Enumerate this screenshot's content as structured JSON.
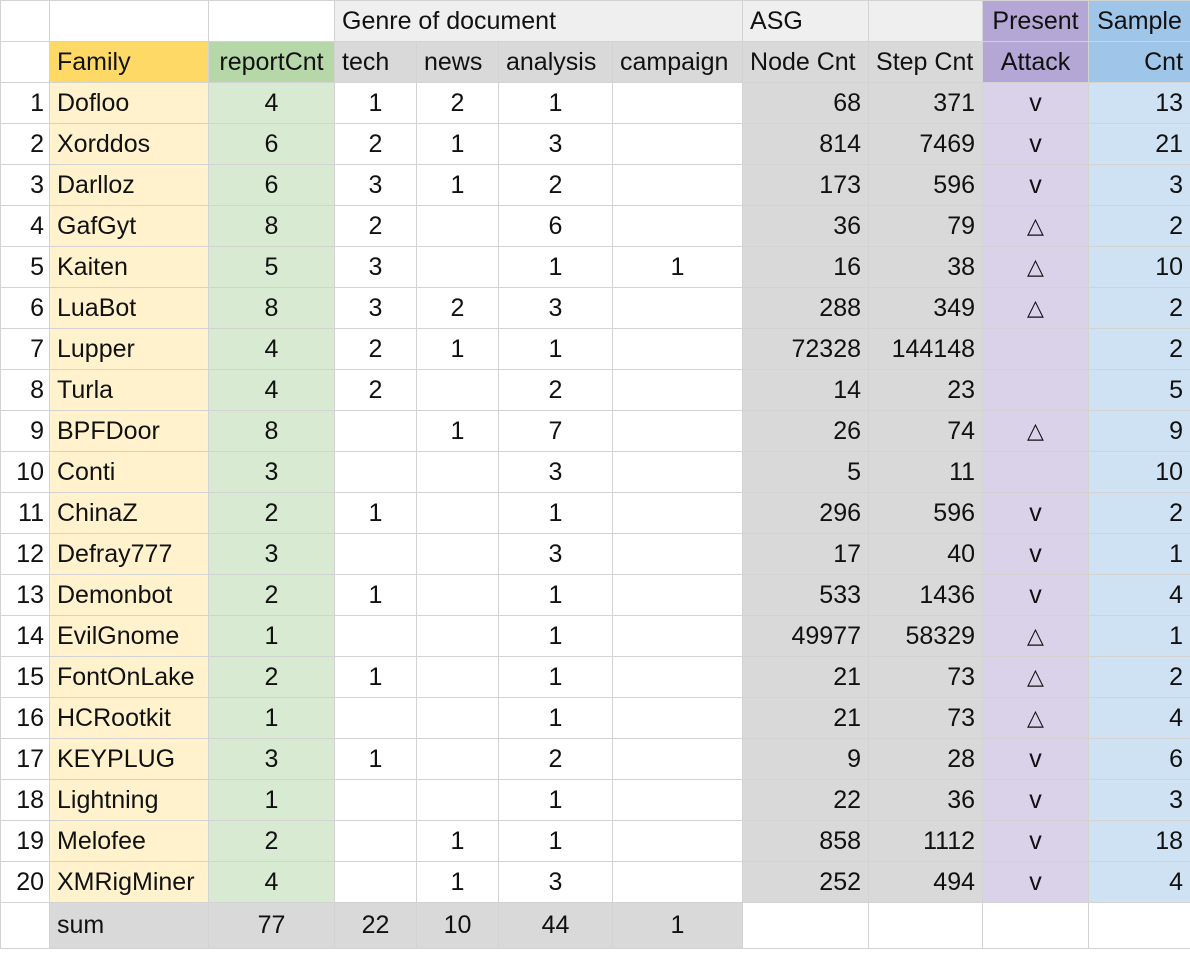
{
  "header_top": {
    "genre": "Genre of document",
    "asg": "ASG",
    "present": "Present",
    "sample": "Sample"
  },
  "header_cols": {
    "family": "Family",
    "reportCnt": "reportCnt",
    "tech": "tech",
    "news": "news",
    "analysis": "analysis",
    "campaign": "campaign",
    "node_cnt": "Node Cnt",
    "step_cnt": "Step Cnt",
    "attack": "Attack",
    "cnt": "Cnt"
  },
  "rows": [
    {
      "n": "1",
      "family": "Dofloo",
      "report": "4",
      "tech": "1",
      "news": "2",
      "analysis": "1",
      "campaign": "",
      "node": "68",
      "step": "371",
      "attack": "v",
      "sample": "13"
    },
    {
      "n": "2",
      "family": "Xorddos",
      "report": "6",
      "tech": "2",
      "news": "1",
      "analysis": "3",
      "campaign": "",
      "node": "814",
      "step": "7469",
      "attack": "v",
      "sample": "21"
    },
    {
      "n": "3",
      "family": "Darlloz",
      "report": "6",
      "tech": "3",
      "news": "1",
      "analysis": "2",
      "campaign": "",
      "node": "173",
      "step": "596",
      "attack": "v",
      "sample": "3"
    },
    {
      "n": "4",
      "family": "GafGyt",
      "report": "8",
      "tech": "2",
      "news": "",
      "analysis": "6",
      "campaign": "",
      "node": "36",
      "step": "79",
      "attack": "△",
      "sample": "2"
    },
    {
      "n": "5",
      "family": "Kaiten",
      "report": "5",
      "tech": "3",
      "news": "",
      "analysis": "1",
      "campaign": "1",
      "node": "16",
      "step": "38",
      "attack": "△",
      "sample": "10"
    },
    {
      "n": "6",
      "family": "LuaBot",
      "report": "8",
      "tech": "3",
      "news": "2",
      "analysis": "3",
      "campaign": "",
      "node": "288",
      "step": "349",
      "attack": "△",
      "sample": "2"
    },
    {
      "n": "7",
      "family": "Lupper",
      "report": "4",
      "tech": "2",
      "news": "1",
      "analysis": "1",
      "campaign": "",
      "node": "72328",
      "step": "144148",
      "attack": "",
      "sample": "2"
    },
    {
      "n": "8",
      "family": "Turla",
      "report": "4",
      "tech": "2",
      "news": "",
      "analysis": "2",
      "campaign": "",
      "node": "14",
      "step": "23",
      "attack": "",
      "sample": "5"
    },
    {
      "n": "9",
      "family": "BPFDoor",
      "report": "8",
      "tech": "",
      "news": "1",
      "analysis": "7",
      "campaign": "",
      "node": "26",
      "step": "74",
      "attack": "△",
      "sample": "9"
    },
    {
      "n": "10",
      "family": "Conti",
      "report": "3",
      "tech": "",
      "news": "",
      "analysis": "3",
      "campaign": "",
      "node": "5",
      "step": "11",
      "attack": "",
      "sample": "10"
    },
    {
      "n": "11",
      "family": "ChinaZ",
      "report": "2",
      "tech": "1",
      "news": "",
      "analysis": "1",
      "campaign": "",
      "node": "296",
      "step": "596",
      "attack": "v",
      "sample": "2"
    },
    {
      "n": "12",
      "family": "Defray777",
      "report": "3",
      "tech": "",
      "news": "",
      "analysis": "3",
      "campaign": "",
      "node": "17",
      "step": "40",
      "attack": "v",
      "sample": "1"
    },
    {
      "n": "13",
      "family": "Demonbot",
      "report": "2",
      "tech": "1",
      "news": "",
      "analysis": "1",
      "campaign": "",
      "node": "533",
      "step": "1436",
      "attack": "v",
      "sample": "4"
    },
    {
      "n": "14",
      "family": "EvilGnome",
      "report": "1",
      "tech": "",
      "news": "",
      "analysis": "1",
      "campaign": "",
      "node": "49977",
      "step": "58329",
      "attack": "△",
      "sample": "1"
    },
    {
      "n": "15",
      "family": "FontOnLake",
      "report": "2",
      "tech": "1",
      "news": "",
      "analysis": "1",
      "campaign": "",
      "node": "21",
      "step": "73",
      "attack": "△",
      "sample": "2"
    },
    {
      "n": "16",
      "family": "HCRootkit",
      "report": "1",
      "tech": "",
      "news": "",
      "analysis": "1",
      "campaign": "",
      "node": "21",
      "step": "73",
      "attack": "△",
      "sample": "4"
    },
    {
      "n": "17",
      "family": "KEYPLUG",
      "report": "3",
      "tech": "1",
      "news": "",
      "analysis": "2",
      "campaign": "",
      "node": "9",
      "step": "28",
      "attack": "v",
      "sample": "6"
    },
    {
      "n": "18",
      "family": "Lightning",
      "report": "1",
      "tech": "",
      "news": "",
      "analysis": "1",
      "campaign": "",
      "node": "22",
      "step": "36",
      "attack": "v",
      "sample": "3"
    },
    {
      "n": "19",
      "family": "Melofee",
      "report": "2",
      "tech": "",
      "news": "1",
      "analysis": "1",
      "campaign": "",
      "node": "858",
      "step": "1112",
      "attack": "v",
      "sample": "18"
    },
    {
      "n": "20",
      "family": "XMRigMiner",
      "report": "4",
      "tech": "",
      "news": "1",
      "analysis": "3",
      "campaign": "",
      "node": "252",
      "step": "494",
      "attack": "v",
      "sample": "4"
    }
  ],
  "sum_row": {
    "label": "sum",
    "report": "77",
    "tech": "22",
    "news": "10",
    "analysis": "44",
    "campaign": "1"
  }
}
